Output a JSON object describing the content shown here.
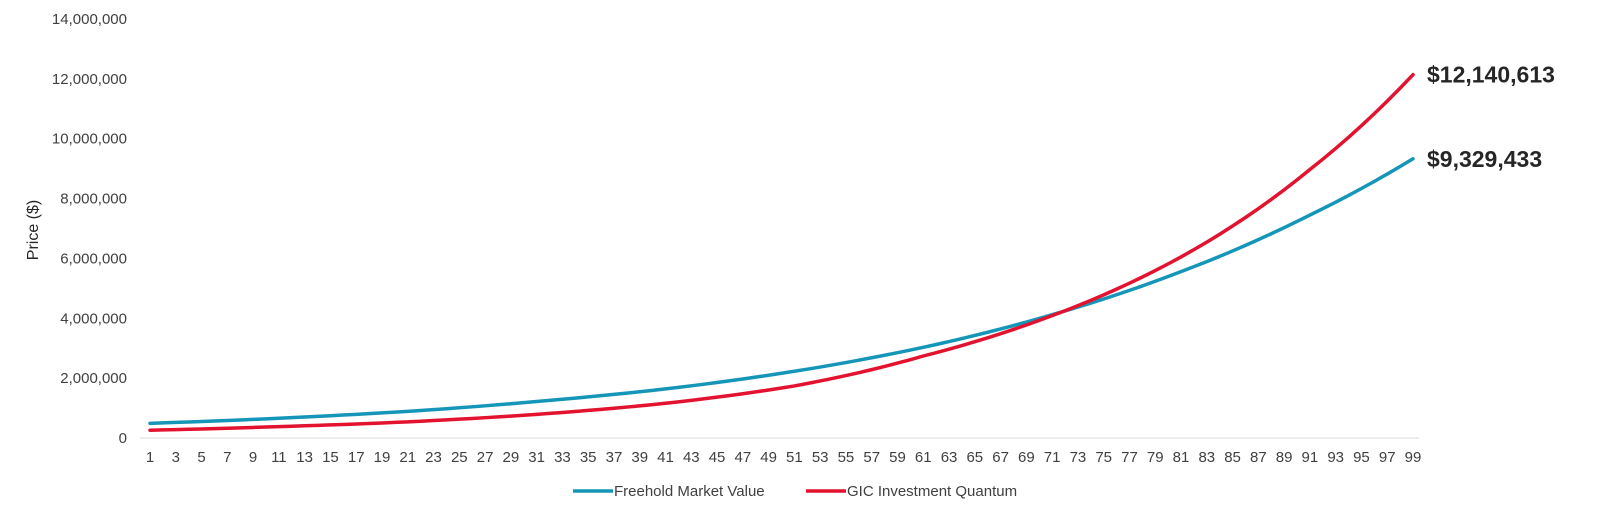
{
  "chart_data": {
    "type": "line",
    "title": "",
    "xlabel": "",
    "ylabel": "Price ($)",
    "ylim": [
      0,
      14000000
    ],
    "yticks": [
      0,
      2000000,
      4000000,
      6000000,
      8000000,
      10000000,
      12000000,
      14000000
    ],
    "ytick_labels": [
      "0",
      "2,000,000",
      "4,000,000",
      "6,000,000",
      "8,000,000",
      "10,000,000",
      "12,000,000",
      "14,000,000"
    ],
    "xlim": [
      1,
      99
    ],
    "xticks": [
      1,
      3,
      5,
      7,
      9,
      11,
      13,
      15,
      17,
      19,
      21,
      23,
      25,
      27,
      29,
      31,
      33,
      35,
      37,
      39,
      41,
      43,
      45,
      47,
      49,
      51,
      53,
      55,
      57,
      59,
      61,
      63,
      65,
      67,
      69,
      71,
      73,
      75,
      77,
      79,
      81,
      83,
      85,
      87,
      89,
      91,
      93,
      95,
      97,
      99
    ],
    "grid": false,
    "legend_position": "bottom",
    "series": [
      {
        "name": "Freehold Market Value",
        "color": "#1596b8",
        "x": [
          1,
          11,
          21,
          31,
          41,
          51,
          61,
          71,
          81,
          91,
          99
        ],
        "values": [
          490000,
          660000,
          890000,
          1220000,
          1640000,
          2230000,
          3030000,
          4120000,
          5560000,
          7450000,
          9329433
        ],
        "end_label": "$9,329,433"
      },
      {
        "name": "GIC Investment Quantum",
        "color": "#e3122f",
        "x": [
          1,
          11,
          21,
          31,
          41,
          51,
          61,
          71,
          81,
          91,
          99
        ],
        "values": [
          260000,
          380000,
          540000,
          790000,
          1160000,
          1740000,
          2740000,
          4090000,
          6050000,
          8970000,
          12140613
        ],
        "end_label": "$12,140,613"
      }
    ]
  }
}
